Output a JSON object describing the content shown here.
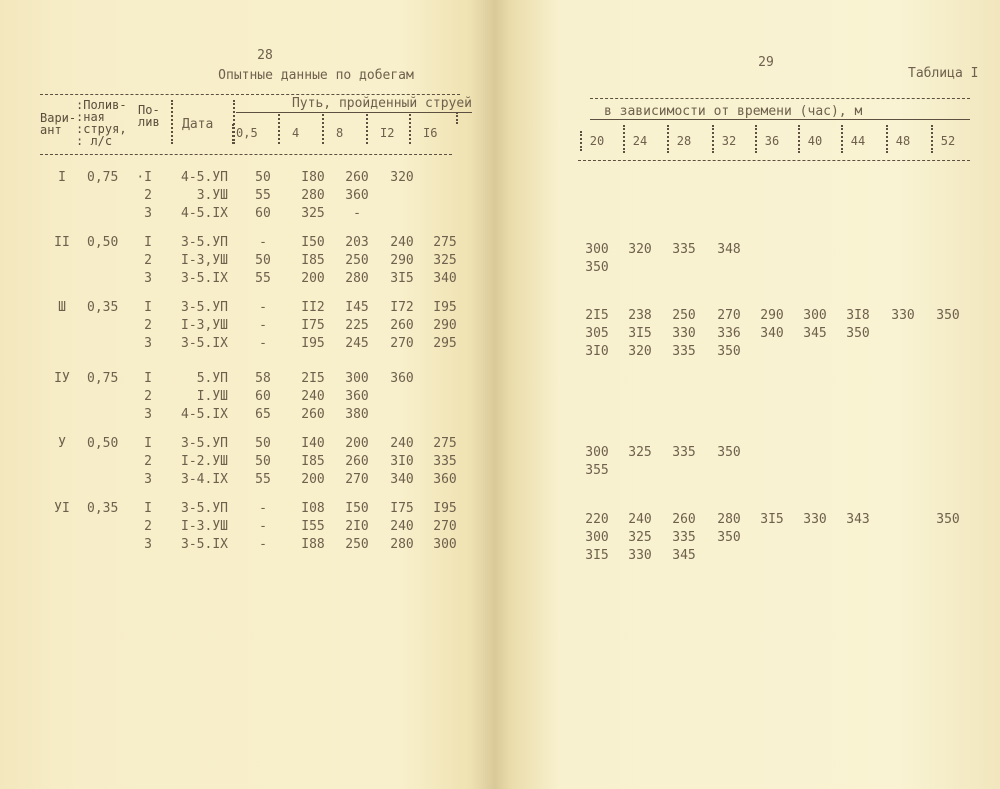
{
  "left_page": {
    "page_number": "28",
    "title": "Опытные данные по добегам",
    "headers": {
      "variant": [
        "Вари-",
        "ант"
      ],
      "flow": [
        ":Полив-",
        ":ная",
        ":струя,",
        ": л/с"
      ],
      "watering": [
        "По-",
        "лив"
      ],
      "date": "Дата",
      "path_group": "Путь, пройденный струей",
      "times": [
        "0,5",
        "4",
        "8",
        "I2",
        "I6"
      ]
    },
    "groups": [
      {
        "variant": "I",
        "flow": "0,75",
        "rows": [
          {
            "watering": "·I",
            "date": "4-5.УП",
            "values": [
              "50",
              "I80",
              "260",
              "320",
              ""
            ]
          },
          {
            "watering": "2",
            "date": "3.УШ",
            "values": [
              "55",
              "280",
              "360",
              "",
              ""
            ]
          },
          {
            "watering": "3",
            "date": "4-5.IX",
            "values": [
              "60",
              "325",
              "-",
              "",
              ""
            ]
          }
        ]
      },
      {
        "variant": "II",
        "flow": "0,50",
        "rows": [
          {
            "watering": "I",
            "date": "3-5.УП",
            "values": [
              "-",
              "I50",
              "203",
              "240",
              "275"
            ]
          },
          {
            "watering": "2",
            "date": "I-3,УШ",
            "values": [
              "50",
              "I85",
              "250",
              "290",
              "325"
            ]
          },
          {
            "watering": "3",
            "date": "3-5.IX",
            "values": [
              "55",
              "200",
              "280",
              "3I5",
              "340"
            ]
          }
        ]
      },
      {
        "variant": "Ш",
        "flow": "0,35",
        "rows": [
          {
            "watering": "I",
            "date": "3-5.УП",
            "values": [
              "-",
              "II2",
              "I45",
              "I72",
              "I95"
            ]
          },
          {
            "watering": "2",
            "date": "I-3,УШ",
            "values": [
              "-",
              "I75",
              "225",
              "260",
              "290"
            ]
          },
          {
            "watering": "3",
            "date": "3-5.IX",
            "values": [
              "-",
              "I95",
              "245",
              "270",
              "295"
            ]
          }
        ]
      },
      {
        "variant": "IУ",
        "flow": "0,75",
        "rows": [
          {
            "watering": "I",
            "date": "5.УП",
            "values": [
              "58",
              "2I5",
              "300",
              "360",
              ""
            ]
          },
          {
            "watering": "2",
            "date": "I.УШ",
            "values": [
              "60",
              "240",
              "360",
              "",
              ""
            ]
          },
          {
            "watering": "3",
            "date": "4-5.IX",
            "values": [
              "65",
              "260",
              "380",
              "",
              ""
            ]
          }
        ]
      },
      {
        "variant": "У",
        "flow": "0,50",
        "rows": [
          {
            "watering": "I",
            "date": "3-5.УП",
            "values": [
              "50",
              "I40",
              "200",
              "240",
              "275"
            ]
          },
          {
            "watering": "2",
            "date": "I-2.УШ",
            "values": [
              "50",
              "I85",
              "260",
              "3I0",
              "335"
            ]
          },
          {
            "watering": "3",
            "date": "3-4.IX",
            "values": [
              "55",
              "200",
              "270",
              "340",
              "360"
            ]
          }
        ]
      },
      {
        "variant": "УI",
        "flow": "0,35",
        "rows": [
          {
            "watering": "I",
            "date": "3-5.УП",
            "values": [
              "-",
              "I08",
              "I50",
              "I75",
              "I95"
            ]
          },
          {
            "watering": "2",
            "date": "I-3.УШ",
            "values": [
              "-",
              "I55",
              "2I0",
              "240",
              "270"
            ]
          },
          {
            "watering": "3",
            "date": "3-5.IX",
            "values": [
              "-",
              "I88",
              "250",
              "280",
              "300"
            ]
          }
        ]
      }
    ]
  },
  "right_page": {
    "page_number": "29",
    "table_label": "Таблица I",
    "path_group_cont": "в зависимости от времени (час), м",
    "times": [
      "20",
      "24",
      "28",
      "32",
      "36",
      "40",
      "44",
      "48",
      "52"
    ],
    "groups": [
      {
        "rows": []
      },
      {
        "rows": [
          [
            "300",
            "320",
            "335",
            "348",
            "",
            "",
            "",
            "",
            ""
          ],
          [
            "350",
            "",
            "",
            "",
            "",
            "",
            "",
            "",
            ""
          ]
        ]
      },
      {
        "rows": [
          [
            "2I5",
            "238",
            "250",
            "270",
            "290",
            "300",
            "3I8",
            "330",
            "350"
          ],
          [
            "305",
            "3I5",
            "330",
            "336",
            "340",
            "345",
            "350",
            "",
            ""
          ],
          [
            "3I0",
            "320",
            "335",
            "350",
            "",
            "",
            "",
            "",
            ""
          ]
        ]
      },
      {
        "rows": []
      },
      {
        "rows": [
          [
            "300",
            "325",
            "335",
            "350",
            "",
            "",
            "",
            "",
            ""
          ],
          [
            "355",
            "",
            "",
            "",
            "",
            "",
            "",
            "",
            ""
          ]
        ]
      },
      {
        "rows": [
          [
            "220",
            "240",
            "260",
            "280",
            "3I5",
            "330",
            "343",
            "",
            "350"
          ],
          [
            "300",
            "325",
            "335",
            "350",
            "",
            "",
            "",
            "",
            ""
          ],
          [
            "3I5",
            "330",
            "345",
            "",
            "",
            "",
            "",
            "",
            ""
          ]
        ]
      }
    ]
  }
}
